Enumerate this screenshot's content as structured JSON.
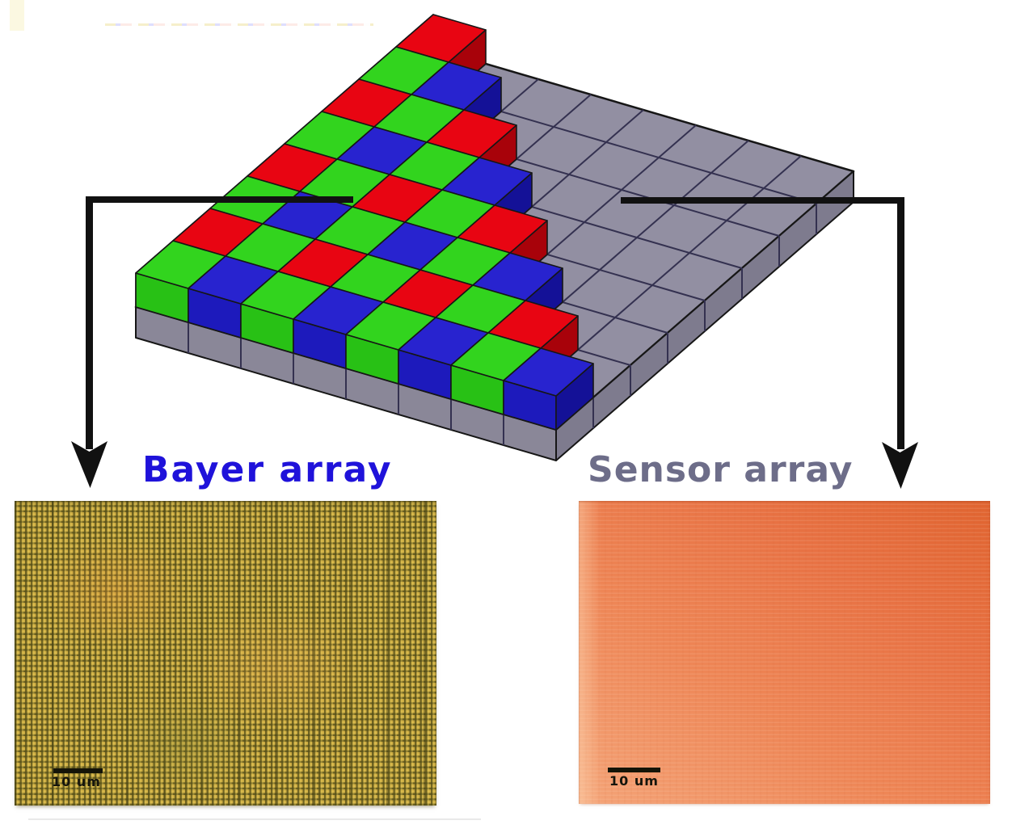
{
  "figure": {
    "title_labels": {
      "bayer": {
        "text": "Bayer array",
        "color": "#1f12da"
      },
      "sensor": {
        "text": "Sensor array",
        "color": "#6d6d89"
      }
    },
    "diagram": {
      "grid_rows": 8,
      "grid_cols": 8,
      "triangle_rows": [
        [
          "G",
          "B",
          "G",
          "B",
          "G",
          "B",
          "G",
          "B"
        ],
        [
          "R",
          "G",
          "R",
          "G",
          "R",
          "G",
          "R"
        ],
        [
          "G",
          "B",
          "G",
          "B",
          "G",
          "B"
        ],
        [
          "R",
          "G",
          "R",
          "G",
          "R"
        ],
        [
          "G",
          "B",
          "G",
          "B"
        ],
        [
          "R",
          "G",
          "R"
        ],
        [
          "G",
          "B"
        ],
        [
          "R"
        ]
      ],
      "palette": {
        "R": {
          "top": "#e80512",
          "front": "#d1040e",
          "side": "#a8020a",
          "left": "#f05a50"
        },
        "G": {
          "top": "#32d41e",
          "front": "#28c115",
          "side": "#1d9c0e",
          "left": "#72e858"
        },
        "B": {
          "top": "#2823cf",
          "front": "#1d1abc",
          "side": "#141197",
          "left": "#6a66e8"
        },
        "substrate_top": "#928fa2",
        "substrate_front": "#8a8798",
        "substrate_side": "#7e7b8e",
        "grid_line": "#343150",
        "outline": "#161616",
        "arrow_color": "#111111"
      }
    },
    "micrographs": {
      "bayer": {
        "scale_label": "10 um"
      },
      "sensor": {
        "scale_label": "10 um"
      }
    }
  }
}
